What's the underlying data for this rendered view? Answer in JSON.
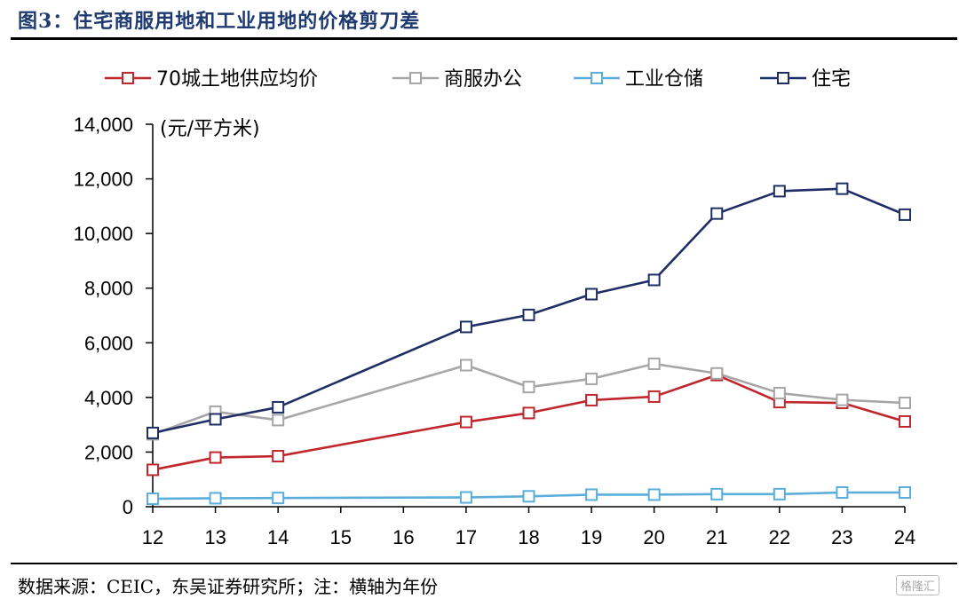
{
  "figure": {
    "title": "图3：住宅商服用地和工业用地的价格剪刀差",
    "source": "数据来源：CEIC，东吴证券研究所；注：横轴为年份",
    "watermark": "格隆汇"
  },
  "chart_data": {
    "type": "line",
    "unit_label": "(元/平方米)",
    "categories": [
      "12",
      "13",
      "14",
      "15",
      "16",
      "17",
      "18",
      "19",
      "20",
      "21",
      "22",
      "23",
      "24"
    ],
    "ylim": [
      0,
      14000
    ],
    "yticks": [
      {
        "value": 0,
        "label": "0"
      },
      {
        "value": 2000,
        "label": "2,000"
      },
      {
        "value": 4000,
        "label": "4,000"
      },
      {
        "value": 6000,
        "label": "6,000"
      },
      {
        "value": 8000,
        "label": "8,000"
      },
      {
        "value": 10000,
        "label": "10,000"
      },
      {
        "value": 12000,
        "label": "12,000"
      },
      {
        "value": 14000,
        "label": "14,000"
      }
    ],
    "legend_position": "top",
    "grid": false,
    "series": [
      {
        "name": "70城土地供应均价",
        "color": "#c0272d",
        "values": [
          1350,
          1800,
          1850,
          null,
          null,
          3100,
          3430,
          3900,
          4030,
          4820,
          3830,
          3800,
          3120
        ]
      },
      {
        "name": "商服办公",
        "color": "#a6a6a6",
        "values": [
          2650,
          3480,
          3170,
          null,
          null,
          5180,
          4380,
          4680,
          5230,
          4880,
          4160,
          3910,
          3800
        ]
      },
      {
        "name": "工业仓储",
        "color": "#5aaedc",
        "values": [
          290,
          310,
          320,
          null,
          null,
          340,
          380,
          440,
          440,
          460,
          460,
          520,
          520
        ]
      },
      {
        "name": "住宅",
        "color": "#1f2f66",
        "values": [
          2700,
          3200,
          3640,
          null,
          null,
          6580,
          7020,
          7780,
          8300,
          10730,
          11550,
          11640,
          10690
        ]
      }
    ]
  }
}
